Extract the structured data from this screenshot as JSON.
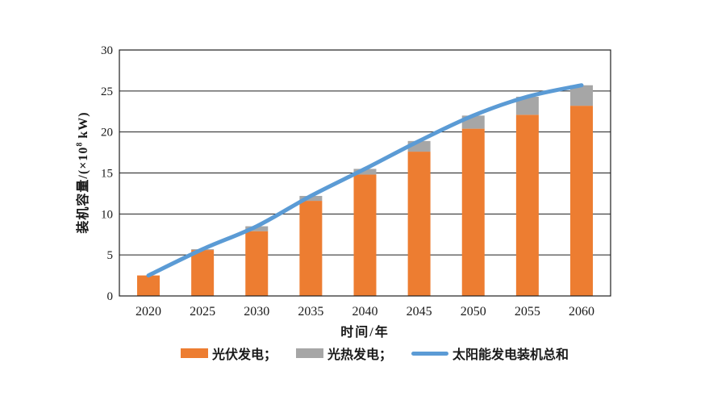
{
  "colors": {
    "pv": "#ED7D31",
    "csp": "#A6A6A6",
    "total_line": "#5B9BD5",
    "axis": "#1f1f1f",
    "grid": "#1f1f1f",
    "background": "#FFFFFF",
    "tick_text": "#1a1a1a"
  },
  "chart_data": {
    "type": "bar",
    "subtype": "stacked-bars-with-smoothed-line-overlay",
    "title": "",
    "xlabel": "时间/年",
    "ylabel": "装机容量/(×10⁸ kW)",
    "ylabel_parts": {
      "prefix": "装机容量/(×10",
      "sup": "8",
      "suffix": " kW)"
    },
    "categories": [
      "2020",
      "2025",
      "2030",
      "2035",
      "2040",
      "2045",
      "2050",
      "2055",
      "2060"
    ],
    "series": [
      {
        "name": "光伏发电",
        "kind": "bar",
        "color_key": "pv",
        "values": [
          2.5,
          5.6,
          7.9,
          11.6,
          14.8,
          17.6,
          20.4,
          22.1,
          23.2
        ]
      },
      {
        "name": "光热发电",
        "kind": "bar",
        "color_key": "csp",
        "values": [
          0.0,
          0.1,
          0.6,
          0.6,
          0.7,
          1.3,
          1.6,
          2.2,
          2.5
        ]
      },
      {
        "name": "太阳能发电装机总和",
        "kind": "line",
        "color_key": "total_line",
        "values": [
          2.5,
          5.7,
          8.5,
          12.2,
          15.5,
          18.9,
          22.0,
          24.3,
          25.7
        ]
      }
    ],
    "ylim": [
      0,
      30
    ],
    "yticks": [
      0,
      5,
      10,
      15,
      20,
      25,
      30
    ],
    "grid": "horizontal",
    "legend_position": "bottom",
    "legend": [
      {
        "label": "光伏发电；",
        "swatch": "bar",
        "color_key": "pv"
      },
      {
        "label": "光热发电；",
        "swatch": "bar",
        "color_key": "csp"
      },
      {
        "label": "太阳能发电装机总和",
        "swatch": "line",
        "color_key": "total_line"
      }
    ]
  }
}
